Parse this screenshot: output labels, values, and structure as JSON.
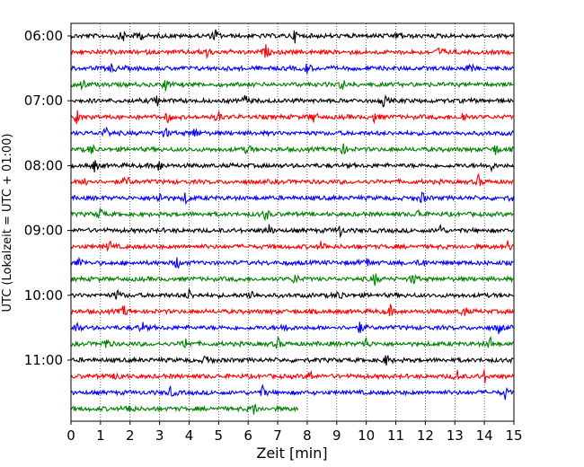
{
  "chart_data": {
    "type": "line",
    "title": "",
    "xlabel": "Zeit  [min]",
    "ylabel": "UTC (Lokalzeit = UTC + 01:00)",
    "xlim": [
      0,
      15
    ],
    "x_ticks": [
      0,
      1,
      2,
      3,
      4,
      5,
      6,
      7,
      8,
      9,
      10,
      11,
      12,
      13,
      14,
      15
    ],
    "x_tick_labels": [
      "0",
      "1",
      "2",
      "3",
      "4",
      "5",
      "6",
      "7",
      "8",
      "9",
      "10",
      "11",
      "12",
      "13",
      "14",
      "15"
    ],
    "y_tick_labels": [
      "06:00",
      "07:00",
      "08:00",
      "09:00",
      "10:00",
      "11:00"
    ],
    "trace_interval_min": 15,
    "grid": "vertical dotted",
    "colors": [
      "#000000",
      "#ff0000",
      "#0000ff",
      "#008000"
    ],
    "traces": [
      {
        "start": "06:00",
        "end_min": 15,
        "events": [
          1.75,
          2.3,
          4.9,
          7.6,
          11.1
        ]
      },
      {
        "start": "06:15",
        "end_min": 15,
        "events": [
          4.6,
          6.6,
          12.5
        ]
      },
      {
        "start": "06:30",
        "end_min": 15,
        "events": [
          1.4,
          8.0,
          13.5
        ]
      },
      {
        "start": "06:45",
        "end_min": 15,
        "events": [
          0.4,
          3.2,
          9.2
        ]
      },
      {
        "start": "07:00",
        "end_min": 15,
        "events": [
          2.9,
          5.9,
          10.6
        ]
      },
      {
        "start": "07:15",
        "end_min": 15,
        "events": [
          0.2,
          3.3,
          5.0,
          8.2,
          10.3,
          13.3
        ]
      },
      {
        "start": "07:30",
        "end_min": 15,
        "events": [
          1.2,
          3.2,
          4.2
        ]
      },
      {
        "start": "07:45",
        "end_min": 15,
        "events": [
          0.7,
          6.0,
          9.2,
          14.4
        ]
      },
      {
        "start": "08:00",
        "end_min": 15,
        "events": [
          0.8,
          3.0,
          14.2
        ]
      },
      {
        "start": "08:15",
        "end_min": 15,
        "events": [
          0.5,
          1.9,
          13.8
        ]
      },
      {
        "start": "08:30",
        "end_min": 15,
        "events": [
          3.0,
          3.9,
          11.9,
          15.0
        ]
      },
      {
        "start": "08:45",
        "end_min": 15,
        "events": [
          1.0,
          6.6,
          11.8
        ]
      },
      {
        "start": "09:00",
        "end_min": 15,
        "events": [
          6.7,
          9.1,
          12.5
        ]
      },
      {
        "start": "09:15",
        "end_min": 15,
        "events": [
          1.3,
          8.5,
          14.8
        ]
      },
      {
        "start": "09:30",
        "end_min": 15,
        "events": [
          0.3,
          3.6,
          10.0,
          11.9
        ]
      },
      {
        "start": "09:45",
        "end_min": 15,
        "events": [
          7.6,
          10.3,
          11.6
        ]
      },
      {
        "start": "10:00",
        "end_min": 15,
        "events": [
          1.6,
          4.0,
          6.1,
          9.1
        ]
      },
      {
        "start": "10:15",
        "end_min": 15,
        "events": [
          1.8,
          10.8,
          13.3
        ]
      },
      {
        "start": "10:30",
        "end_min": 15,
        "events": [
          0.2,
          2.4,
          7.3,
          9.8,
          14.5
        ]
      },
      {
        "start": "10:45",
        "end_min": 15,
        "events": [
          1.2,
          3.9,
          7.0,
          10.0,
          14.2
        ]
      },
      {
        "start": "11:00",
        "end_min": 15,
        "events": [
          4.6,
          10.7
        ]
      },
      {
        "start": "11:15",
        "end_min": 15,
        "events": [
          1.6,
          8.1,
          13.1,
          14.0
        ]
      },
      {
        "start": "11:30",
        "end_min": 15,
        "events": [
          3.4,
          6.5,
          14.7
        ]
      },
      {
        "start": "11:45",
        "end_min": 7.7,
        "events": [
          2.0,
          6.2
        ]
      }
    ]
  }
}
